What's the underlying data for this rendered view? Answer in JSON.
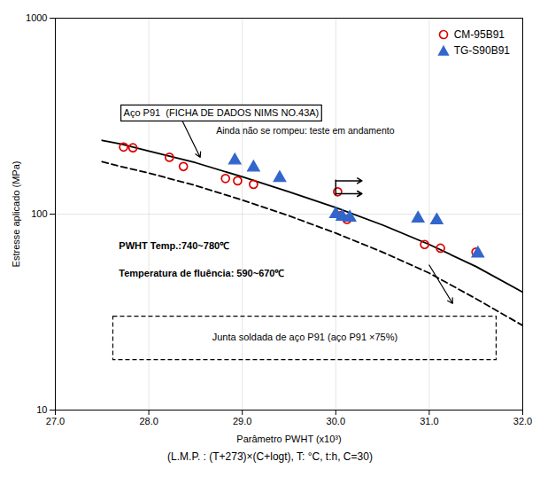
{
  "chart_data": {
    "type": "scatter",
    "xlabel": "Parâmetro PWHT (x10³)",
    "ylabel": "Estresse aplicado (MPa)",
    "subtitle": "(L.M.P. : (T+273̇)×(C+logt), T: °C, t:h, C=30)",
    "log": "y",
    "grid": true,
    "legend": "upper right",
    "xlim": [
      27.0,
      32.0
    ],
    "ylim": [
      10,
      1000
    ],
    "xticks": [
      {
        "value": 27.0,
        "label": "27.0"
      },
      {
        "value": 28.0,
        "label": "28.0"
      },
      {
        "value": 29.0,
        "label": "29.0"
      },
      {
        "value": 30.0,
        "label": "30.0"
      },
      {
        "value": 31.0,
        "label": "31.0"
      },
      {
        "value": 32.0,
        "label": "32.0"
      }
    ],
    "yticks": [
      10,
      100,
      1000
    ],
    "series": [
      {
        "type": "line",
        "line_style": "solid",
        "color": "#000000",
        "x": [
          27.5,
          27.7,
          28.0,
          28.5,
          29.0,
          29.5,
          30.0,
          30.5,
          31.0,
          31.5,
          32.0
        ],
        "values": [
          238,
          228,
          210,
          183,
          155,
          130,
          108,
          88,
          70,
          54,
          40
        ]
      },
      {
        "type": "line",
        "line_style": "dashed",
        "color": "#000000",
        "x": [
          27.5,
          27.7,
          28.0,
          28.5,
          29.0,
          29.5,
          30.0,
          30.5,
          31.0,
          31.5,
          32.0
        ],
        "values": [
          185,
          175,
          162,
          140,
          118,
          98,
          80,
          64,
          50,
          37,
          27
        ]
      },
      {
        "name": "CM-95B91",
        "type": "scatter",
        "marker": "circle_open",
        "color": "#dd0000",
        "x": [
          27.73,
          27.83,
          28.22,
          28.37,
          28.82,
          28.95,
          29.12,
          30.02,
          30.05,
          30.12,
          30.95,
          31.12,
          31.5
        ],
        "values": [
          220,
          218,
          195,
          175,
          152,
          148,
          142,
          130,
          98,
          94,
          70,
          67,
          64
        ]
      },
      {
        "name": "TG-S90B91",
        "type": "scatter",
        "marker": "triangle",
        "color": "#3366cc",
        "x": [
          28.92,
          29.12,
          29.4,
          30.0,
          30.07,
          30.15,
          30.88,
          31.08,
          31.52
        ],
        "values": [
          188,
          173,
          153,
          100,
          97,
          96,
          95,
          93,
          63
        ]
      }
    ],
    "annotations": [
      "Aço P91  (FICHA DE DADOS NIMS NO.43A)",
      "Ainda não se rompeu: teste em andamento",
      "PWHT Temp.:740~780℃",
      "Temperatura de fluência: 590~670℃",
      "Junta soldada de aço P91 (aço P91 ×75%)"
    ]
  }
}
